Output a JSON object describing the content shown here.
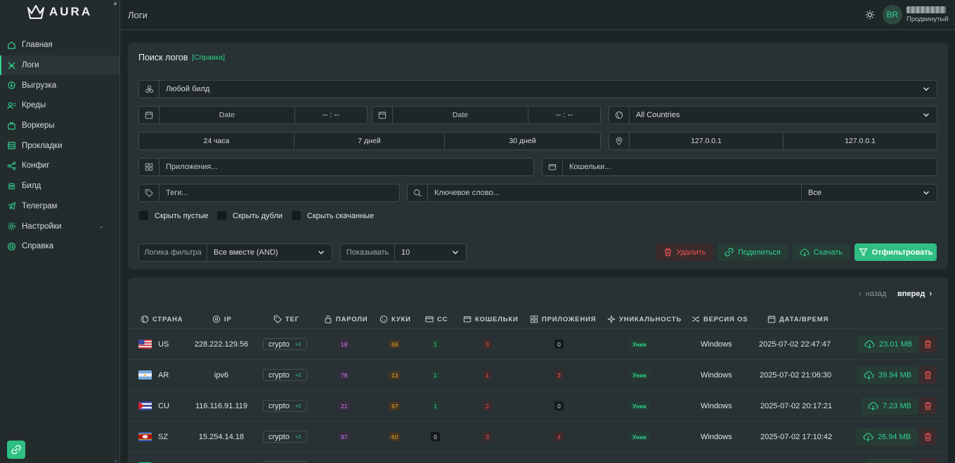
{
  "brand": "AURA",
  "sidebar": {
    "items": [
      {
        "label": "Главная",
        "icon": "home-icon"
      },
      {
        "label": "Логи",
        "icon": "logs-icon",
        "active": true
      },
      {
        "label": "Выгрузка",
        "icon": "export-icon"
      },
      {
        "label": "Креды",
        "icon": "credentials-icon"
      },
      {
        "label": "Воркеры",
        "icon": "workers-icon"
      },
      {
        "label": "Прокладки",
        "icon": "layers-icon"
      },
      {
        "label": "Конфиг",
        "icon": "config-icon"
      },
      {
        "label": "Билд",
        "icon": "build-icon"
      },
      {
        "label": "Телеграм",
        "icon": "telegram-icon"
      },
      {
        "label": "Настройки",
        "icon": "settings-icon"
      },
      {
        "label": "Справка",
        "icon": "help-icon"
      }
    ]
  },
  "header": {
    "title": "Логи",
    "avatar": "BR",
    "role": "Продвинутый"
  },
  "search": {
    "title": "Поиск логов",
    "help": "[Справка]",
    "build": "Любой билд",
    "date_from": "Date",
    "time_from": "-- : --",
    "date_to": "Date",
    "time_to": "-- : --",
    "country": "All Countries",
    "ranges": [
      "24 часа",
      "7 дней",
      "30 дней"
    ],
    "ip_from": "127.0.0.1",
    "ip_to": "127.0.0.1",
    "apps_placeholder": "Приложения...",
    "wallets_placeholder": "Кошельки...",
    "tags_placeholder": "Теги...",
    "keyword_placeholder": "Ключевое слово...",
    "keyword_scope": "Все",
    "checks": [
      "Скрыть пустые",
      "Скрыть дубли",
      "Скрыть скачанные"
    ],
    "logic_label": "Логика фильтра",
    "logic_value": "Все вместе (AND)",
    "show_label": "Показывать",
    "show_value": "10",
    "delete": "Удалить",
    "share": "Поделиться",
    "download": "Скачать",
    "filter": "Отфильтровать"
  },
  "table": {
    "prev": "назад",
    "next": "вперед",
    "headers": [
      "СТРАНА",
      "IP",
      "ТЕГ",
      "ПАРОЛИ",
      "КУКИ",
      "CC",
      "КОШЕЛЬКИ",
      "ПРИЛОЖЕНИЯ",
      "УНИКАЛЬНОСТЬ",
      "ВЕРСИЯ OS",
      "ДАТА/ВРЕМЯ"
    ],
    "rows": [
      {
        "country": "US",
        "ip": "228.222.129.56",
        "tag": "crypto",
        "more": "+2",
        "passwords": "18",
        "cookies": "69",
        "cc": "1",
        "wallets": "3",
        "apps": "0",
        "uniq": "Уник",
        "os": "Windows",
        "date": "2025-07-02 22:47:47",
        "size": "23.01 MB"
      },
      {
        "country": "AR",
        "ip": "ipv6",
        "tag": "crypto",
        "more": "+2",
        "passwords": "78",
        "cookies": "13",
        "cc": "1",
        "wallets": "1",
        "apps": "3",
        "uniq": "Уник",
        "os": "Windows",
        "date": "2025-07-02 21:06:30",
        "size": "39.94 MB"
      },
      {
        "country": "CU",
        "ip": "116.116.91.119",
        "tag": "crypto",
        "more": "+2",
        "passwords": "21",
        "cookies": "97",
        "cc": "1",
        "wallets": "2",
        "apps": "0",
        "uniq": "Уник",
        "os": "Windows",
        "date": "2025-07-02 20:17:21",
        "size": "7.23 MB"
      },
      {
        "country": "SZ",
        "ip": "15.254.14.18",
        "tag": "crypto",
        "more": "+2",
        "passwords": "97",
        "cookies": "60",
        "cc": "0",
        "wallets": "3",
        "apps": "4",
        "uniq": "Уник",
        "os": "Windows",
        "date": "2025-07-02 17:10:42",
        "size": "26.94 MB"
      }
    ]
  },
  "colors": {
    "accent": "#2fd18f",
    "danger": "#f05252",
    "bg": "#1d2426",
    "panel": "#283133"
  }
}
